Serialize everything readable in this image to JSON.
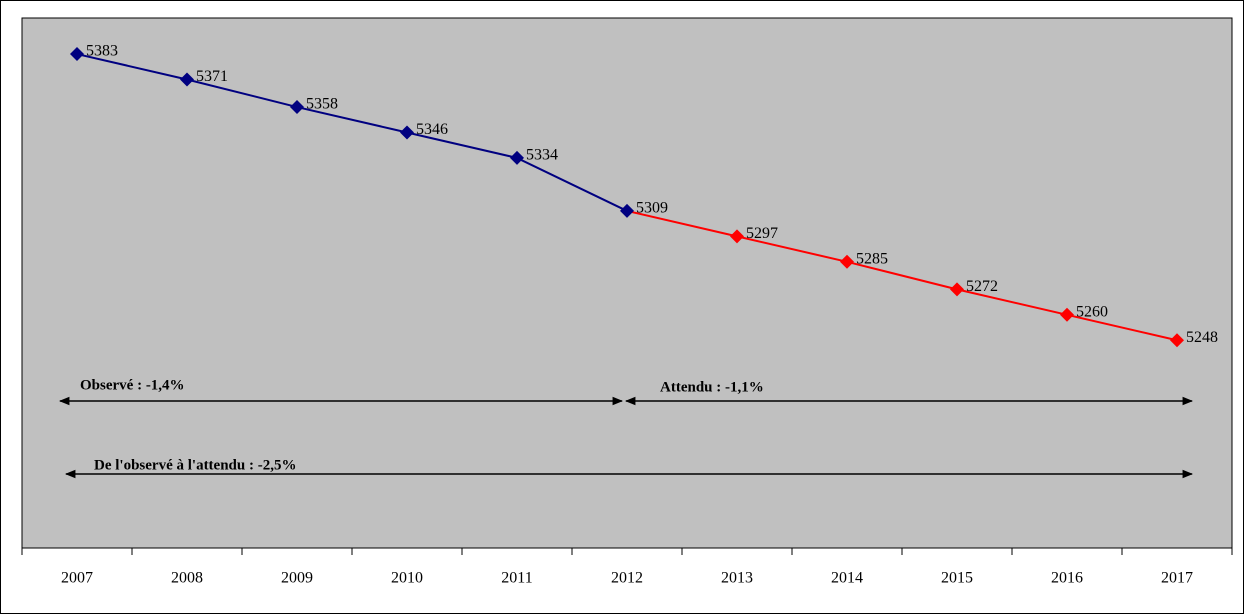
{
  "chart_data": {
    "type": "line",
    "categories": [
      "2007",
      "2008",
      "2009",
      "2010",
      "2011",
      "2012",
      "2013",
      "2014",
      "2015",
      "2016",
      "2017"
    ],
    "series": [
      {
        "name": "Observé",
        "color": "#000080",
        "values": [
          5383,
          5371,
          5358,
          5346,
          5334,
          5309,
          null,
          null,
          null,
          null,
          null
        ]
      },
      {
        "name": "Attendu",
        "color": "#ff0000",
        "values": [
          null,
          null,
          null,
          null,
          null,
          5309,
          5297,
          5285,
          5272,
          5260,
          5248
        ]
      }
    ],
    "ylim": [
      5150,
      5400
    ],
    "annotations": [
      "Observé : -1,4%",
      "Attendu : -1,1%",
      "De l'observé à l'attendu : -2,5%"
    ]
  }
}
